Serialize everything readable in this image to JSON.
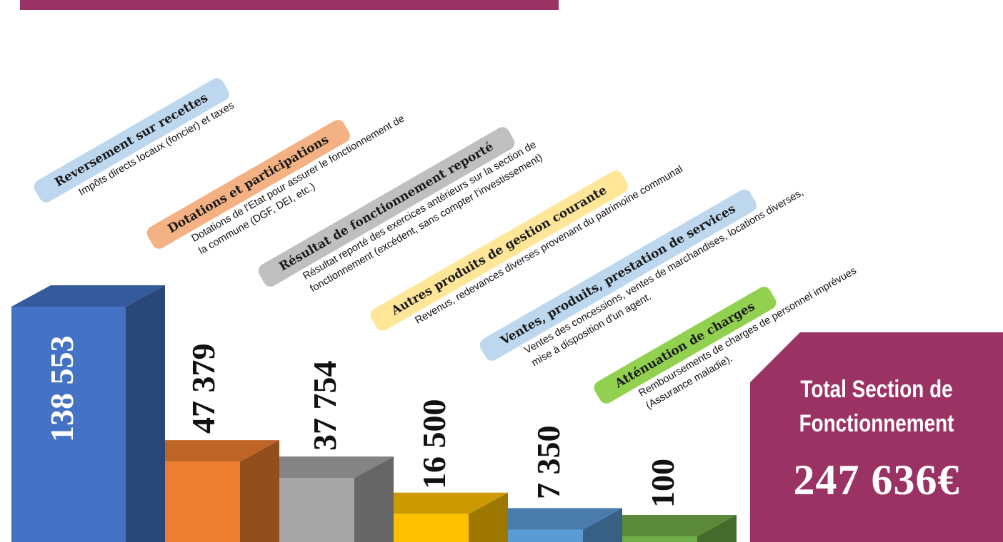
{
  "chart_data": {
    "type": "bar",
    "categories": [
      "Reversement sur recettes",
      "Dotations et participations",
      "Résultat de fonctionnement reporté",
      "Autres produits de gestion courante",
      "Ventes, produits, prestation de services",
      "Atténuation de charges"
    ],
    "values": [
      138553,
      47379,
      37754,
      16500,
      7350,
      100
    ],
    "value_labels": [
      "138 553",
      "47 379",
      "37 754",
      "16 500",
      "7 350",
      "100"
    ],
    "descriptions": [
      [
        "Impôts directs locaux (foncier) et taxes"
      ],
      [
        "Dotations de l'Etat pour assurer le fonctionnement de",
        "la commune (DGF, DEI, etc.)"
      ],
      [
        "Résultat reporté des exercices antérieurs sur la section de",
        "fonctionnement (excédent, sans compter l'investissement)"
      ],
      [
        "Revenus, redevances diverses provenant du patrimoine communal"
      ],
      [
        "Ventes des concessions, ventes de marchandises, locations diverses,",
        "mise à disposition d'un agent."
      ],
      [
        "Remboursements de charges de personnel imprévues",
        "(Assurance maladie)."
      ]
    ],
    "colors": {
      "front": [
        "#4472c4",
        "#ed7d31",
        "#a5a5a5",
        "#ffc000",
        "#5b9bd5",
        "#70ad47"
      ],
      "pill": [
        "#bdd7ee",
        "#f4b183",
        "#bfbfbf",
        "#ffe699",
        "#bdd7ee",
        "#92d050"
      ]
    },
    "total_label": "Total Section de Fonctionnement",
    "total_label_lines": [
      "Total Section de",
      "Fonctionnement"
    ],
    "total_value": "247 636€",
    "accent_color": "#9b3264"
  }
}
